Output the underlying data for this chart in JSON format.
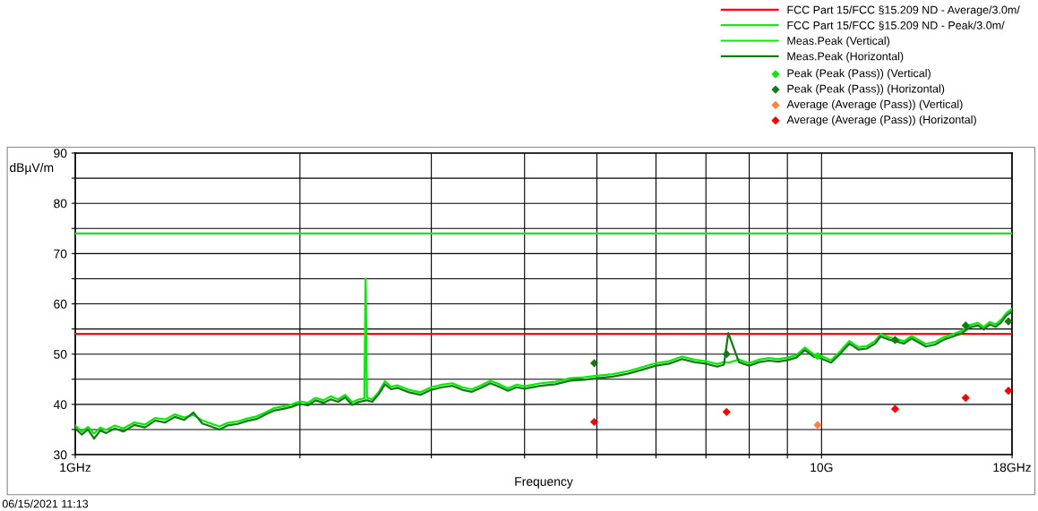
{
  "chart_data": {
    "type": "line",
    "xlabel": "Frequency",
    "ylabel": "dBµV/m",
    "annotations": [
      "06/15/2021 11:13"
    ],
    "log": "x",
    "grid": true,
    "legend": "top right",
    "xlim": [
      1,
      18
    ],
    "xticks": [
      {
        "value": 1,
        "label": "1GHz"
      },
      {
        "value": 2,
        "label": null
      },
      {
        "value": 3,
        "label": null
      },
      {
        "value": 4,
        "label": null
      },
      {
        "value": 5,
        "label": null
      },
      {
        "value": 6,
        "label": null
      },
      {
        "value": 7,
        "label": null
      },
      {
        "value": 8,
        "label": null
      },
      {
        "value": 9,
        "label": null
      },
      {
        "value": 10,
        "label": "10G"
      },
      {
        "value": 18,
        "label": "18GHz"
      }
    ],
    "ylim": [
      30,
      90
    ],
    "yticks": [
      30,
      {
        "value": 35,
        "label": null
      },
      40,
      {
        "value": 45,
        "label": null
      },
      50,
      {
        "value": 55,
        "label": null
      },
      60,
      {
        "value": 65,
        "label": null
      },
      70,
      {
        "value": 75,
        "label": null
      },
      80,
      {
        "value": 85,
        "label": null
      },
      90
    ],
    "x": [
      1.0,
      1.02,
      1.04,
      1.06,
      1.08,
      1.1,
      1.13,
      1.16,
      1.2,
      1.24,
      1.28,
      1.32,
      1.36,
      1.4,
      1.44,
      1.48,
      1.52,
      1.56,
      1.6,
      1.65,
      1.7,
      1.75,
      1.8,
      1.85,
      1.9,
      1.95,
      2.0,
      2.05,
      2.1,
      2.15,
      2.2,
      2.25,
      2.3,
      2.35,
      2.4,
      2.44,
      2.45,
      2.46,
      2.5,
      2.55,
      2.6,
      2.65,
      2.7,
      2.8,
      2.9,
      3.0,
      3.1,
      3.2,
      3.3,
      3.4,
      3.5,
      3.6,
      3.7,
      3.8,
      3.9,
      4.0,
      4.2,
      4.4,
      4.6,
      4.8,
      5.0,
      5.25,
      5.5,
      5.75,
      6.0,
      6.25,
      6.5,
      6.75,
      7.0,
      7.25,
      7.4,
      7.5,
      7.75,
      8.0,
      8.25,
      8.5,
      8.75,
      9.0,
      9.25,
      9.5,
      9.75,
      10.0,
      10.3,
      10.6,
      10.9,
      11.2,
      11.5,
      11.8,
      12.0,
      12.3,
      12.6,
      12.9,
      13.2,
      13.5,
      13.8,
      14.2,
      14.6,
      15.0,
      15.4,
      15.8,
      16.2,
      16.5,
      16.8,
      17.1,
      17.4,
      17.7,
      18.0
    ],
    "series": [
      {
        "name": "FCC Part 15/FCC §15.209 ND - Average/3.0m/",
        "color": "#ff0000",
        "x": [
          1,
          18
        ],
        "values": [
          54,
          54
        ]
      },
      {
        "name": "FCC Part 15/FCC §15.209 ND - Peak/3.0m/",
        "color": "#22dd22",
        "x": [
          1,
          18
        ],
        "values": [
          74,
          74
        ]
      },
      {
        "name": "Meas.Peak (Vertical)",
        "color": "#00ee00",
        "values": [
          35.8,
          34.6,
          35.5,
          34.2,
          35.4,
          34.9,
          35.8,
          35.2,
          36.4,
          36.0,
          37.3,
          37.0,
          38.0,
          37.4,
          37.9,
          36.8,
          36.2,
          35.6,
          36.3,
          36.6,
          37.2,
          37.6,
          38.4,
          39.3,
          39.6,
          40.0,
          40.6,
          40.3,
          41.3,
          40.8,
          41.6,
          41.0,
          41.9,
          40.4,
          41.0,
          41.2,
          65.0,
          41.3,
          41.0,
          42.4,
          44.6,
          43.5,
          43.8,
          42.9,
          42.4,
          43.4,
          43.9,
          44.2,
          43.4,
          43.0,
          43.8,
          44.7,
          44.0,
          43.2,
          43.9,
          43.6,
          44.2,
          44.5,
          45.2,
          45.4,
          45.7,
          46.0,
          46.6,
          47.4,
          48.2,
          48.6,
          49.5,
          48.9,
          48.6,
          48.0,
          48.4,
          48.3,
          48.9,
          48.2,
          48.9,
          49.2,
          49.0,
          49.3,
          49.8,
          51.3,
          50.0,
          49.6,
          48.8,
          50.6,
          52.6,
          51.4,
          51.6,
          52.6,
          54.0,
          53.4,
          53.0,
          52.6,
          53.6,
          52.8,
          52.0,
          52.4,
          53.4,
          54.0,
          54.6,
          55.8,
          56.2,
          55.4,
          56.4,
          55.9,
          56.8,
          58.2,
          59.0
        ]
      },
      {
        "name": "Meas.Peak (Horizontal)",
        "color": "#127a12",
        "values": [
          35.2,
          34.0,
          35.0,
          33.2,
          34.8,
          34.3,
          35.2,
          34.6,
          35.9,
          35.4,
          36.8,
          36.4,
          37.5,
          36.9,
          38.4,
          36.2,
          35.6,
          35.0,
          35.8,
          36.1,
          36.7,
          37.1,
          38.0,
          38.8,
          39.1,
          39.5,
          40.1,
          39.8,
          40.8,
          40.3,
          41.0,
          40.5,
          41.4,
          39.9,
          40.5,
          40.7,
          40.8,
          40.8,
          40.5,
          42.0,
          44.0,
          43.0,
          43.3,
          42.4,
          41.9,
          42.9,
          43.4,
          43.7,
          42.9,
          42.5,
          43.3,
          44.2,
          43.5,
          42.7,
          43.4,
          43.1,
          43.7,
          44.0,
          44.7,
          44.9,
          45.2,
          45.5,
          46.1,
          46.9,
          47.7,
          48.1,
          49.0,
          48.4,
          48.1,
          47.5,
          47.9,
          54.2,
          48.4,
          47.7,
          48.4,
          48.7,
          48.5,
          48.8,
          49.3,
          50.8,
          49.5,
          49.1,
          48.3,
          50.1,
          52.1,
          50.9,
          51.1,
          52.1,
          53.5,
          52.9,
          52.5,
          52.1,
          53.1,
          52.3,
          51.5,
          51.9,
          52.9,
          53.5,
          54.1,
          55.3,
          55.7,
          54.9,
          55.9,
          55.4,
          56.3,
          57.7,
          58.5
        ]
      },
      {
        "name": "Peak (Peak (Pass)) (Vertical)",
        "type": "scatter",
        "marker": "diamond",
        "color": "#00ee00",
        "x": [
          9.88
        ],
        "values": [
          49.6
        ]
      },
      {
        "name": "Peak (Peak (Pass)) (Horizontal)",
        "type": "scatter",
        "marker": "diamond",
        "color": "#127a12",
        "x": [
          4.96,
          7.46,
          12.55,
          15.6,
          17.8
        ],
        "values": [
          48.2,
          50.0,
          52.8,
          55.7,
          56.5
        ]
      },
      {
        "name": "Average (Average (Pass)) (Vertical)",
        "type": "scatter",
        "marker": "diamond",
        "color": "#ff8040",
        "x": [
          9.88
        ],
        "values": [
          35.9
        ]
      },
      {
        "name": "Average (Average (Pass)) (Horizontal)",
        "type": "scatter",
        "marker": "diamond",
        "color": "#ff0000",
        "x": [
          4.96,
          7.46,
          12.55,
          15.6,
          17.8
        ],
        "values": [
          36.5,
          38.5,
          39.1,
          41.3,
          42.7
        ]
      }
    ]
  }
}
